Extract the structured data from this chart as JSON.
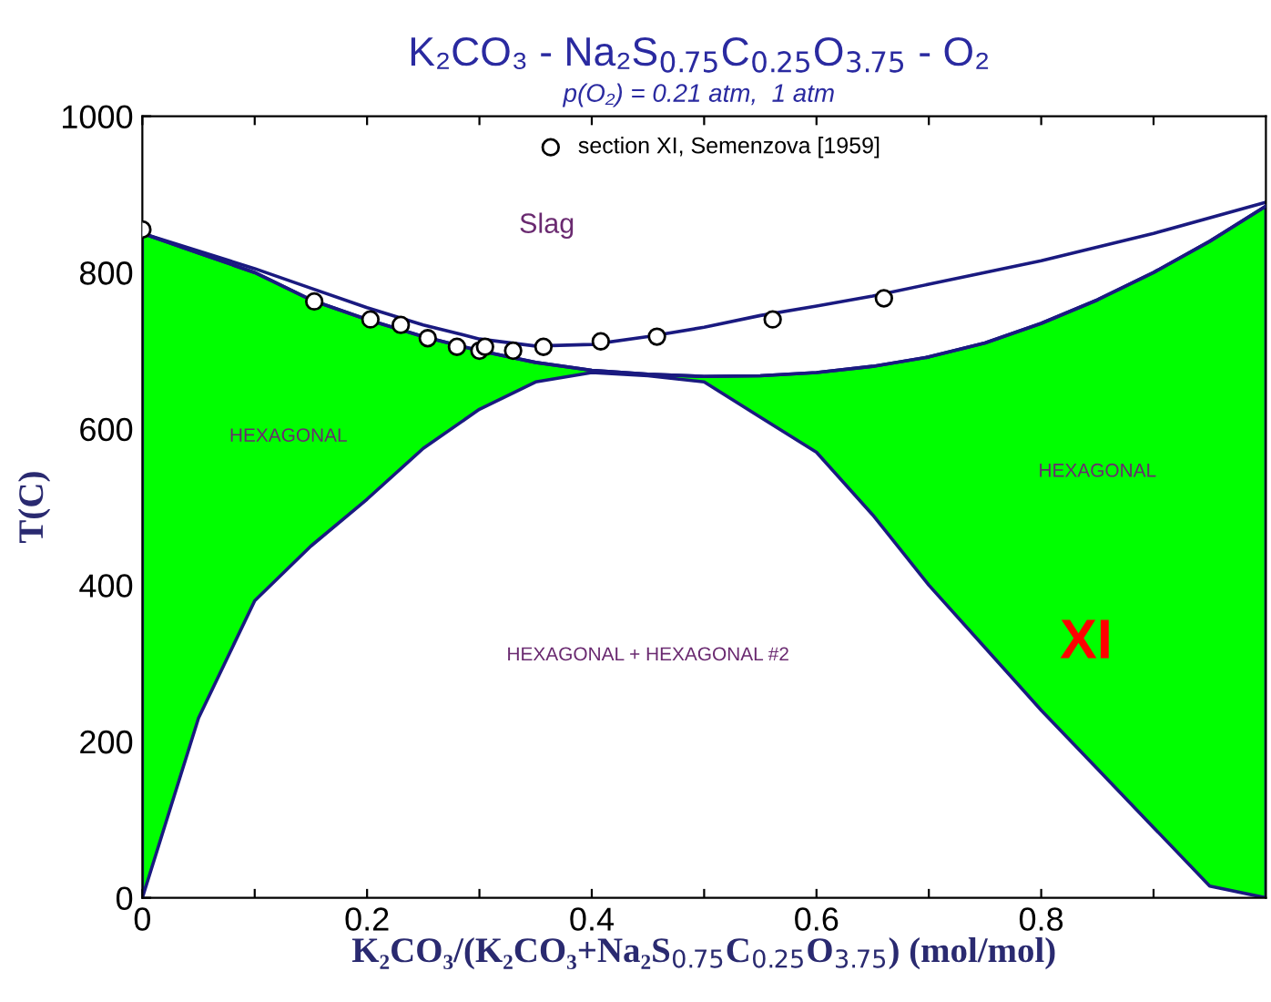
{
  "chart_data": {
    "type": "line",
    "title": "K₂CO₃ - Na₂S$_{0.75}$C$_{0.25}$O$_{3.75}$ - O₂",
    "subtitle": "p(O₂) = 0.21 atm,  1 atm",
    "xlabel": "K₂CO₃/(K₂CO₃+Na₂S$_{0.75}$C$_{0.25}$O$_{3.75}$) (mol/mol)",
    "ylabel": "T(C)",
    "xlim": [
      0,
      1
    ],
    "ylim": [
      0,
      1000
    ],
    "xticks": [
      0,
      {
        "value": 0.1,
        "label": null
      },
      0.2,
      {
        "value": 0.3,
        "label": null
      },
      0.4,
      {
        "value": 0.5,
        "label": null
      },
      0.6,
      {
        "value": 0.7,
        "label": null
      },
      0.8,
      {
        "value": 0.9,
        "label": null
      }
    ],
    "yticks": [
      0,
      200,
      400,
      600,
      800,
      1000
    ],
    "grid": false,
    "legend": "top",
    "series": [
      {
        "type": "line",
        "color": "#1a1a80",
        "upper": [
          850,
          825,
          800,
          765,
          740,
          718,
          700,
          685,
          675,
          670,
          667,
          668,
          672,
          680,
          692,
          710,
          735,
          765,
          800,
          840,
          885
        ],
        "x": [
          0,
          0.05,
          0.1,
          0.15,
          0.2,
          0.25,
          0.3,
          0.35,
          0.4,
          0.45,
          0.5,
          0.55,
          0.6,
          0.65,
          0.7,
          0.75,
          0.8,
          0.85,
          0.9,
          0.95,
          1.0
        ],
        "values": [
          850,
          825,
          800,
          765,
          740,
          718,
          700,
          685,
          675,
          670,
          667,
          668,
          672,
          680,
          692,
          710,
          735,
          765,
          800,
          840,
          885
        ],
        "lower": [
          0,
          230,
          380,
          450,
          510,
          575,
          625,
          660,
          672,
          668,
          660,
          615,
          570,
          490,
          400,
          320,
          240,
          165,
          90,
          15,
          0
        ]
      },
      {
        "color": "#1a1a80",
        "x": [
          0,
          0.1,
          0.15,
          0.2,
          0.25,
          0.3,
          0.35,
          0.4,
          0.45,
          0.5,
          0.55,
          0.6,
          0.65,
          0.7,
          0.8,
          0.9,
          1.0
        ],
        "values": [
          850,
          805,
          780,
          755,
          733,
          715,
          706,
          708,
          718,
          730,
          745,
          757,
          770,
          785,
          815,
          850,
          890
        ]
      },
      {
        "type": "scatter",
        "name": "section XI, Semenzova [1959]",
        "color": "#000000",
        "marker": "circle",
        "x": [
          0,
          0.153,
          0.203,
          0.23,
          0.254,
          0.28,
          0.3,
          0.305,
          0.33,
          0.357,
          0.408,
          0.458,
          0.561,
          0.66
        ],
        "values": [
          855,
          763,
          740,
          733,
          716,
          705,
          700,
          705,
          700,
          705,
          712,
          718,
          740,
          767
        ]
      }
    ],
    "annotations": [
      "Slag",
      "HEXAGONAL",
      "HEXAGONAL",
      "HEXAGONAL + HEXAGONAL #2",
      "XI"
    ]
  }
}
